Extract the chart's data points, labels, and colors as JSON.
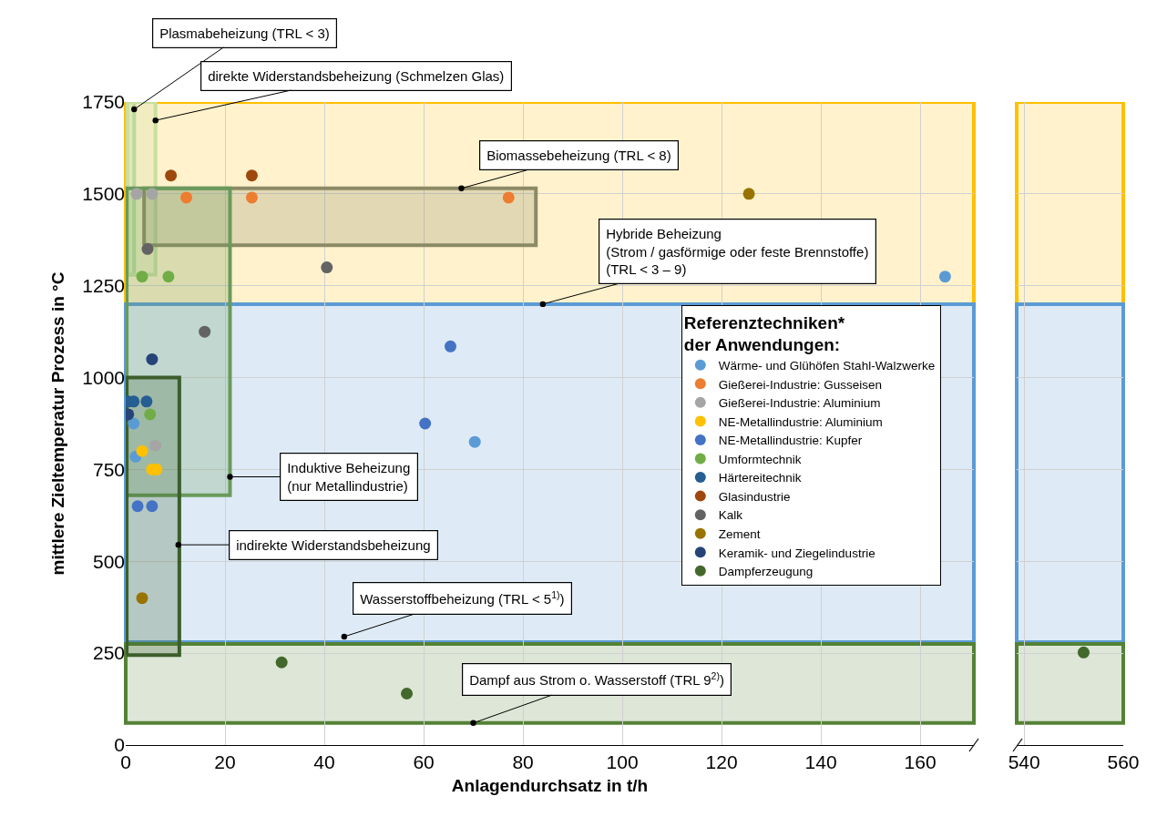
{
  "chart_data": [
    {
      "type": "scatter",
      "xlabel": "Anlagendurchsatz in t/h",
      "ylabel": "mittlere Zieltemperatur Prozess in °C",
      "legend_title": "Referenztechniken*\nder Anwendungen:",
      "xlim": [
        0,
        170.8
      ],
      "xticks": [
        0,
        20,
        40,
        60,
        80,
        100,
        120,
        140,
        160
      ],
      "ylim": [
        0,
        1750
      ],
      "yticks": [
        0,
        250,
        500,
        750,
        1000,
        1250,
        1500,
        1750
      ],
      "grid": true,
      "legend": "right",
      "bands": [
        {
          "axis": "y",
          "from": 1200,
          "to": 1750,
          "color": "#ffc000"
        },
        {
          "axis": "y",
          "from": 280,
          "to": 1200,
          "color": "#5b9bd5"
        },
        {
          "axis": "y",
          "from": 60,
          "to": 275,
          "color": "#548235"
        }
      ],
      "annotations": [
        {
          "text": "Plasmabeheizung (TRL < 3)",
          "x": 1.7,
          "y": 1730
        },
        {
          "text": "direkte Widerstandsbeheizung (Schmelzen Glas)",
          "x": 6,
          "y": 1700
        },
        {
          "text": "Biomassebeheizung (TRL < 8)",
          "x": 67.6,
          "y": 1515
        },
        {
          "text": "Hybride Beheizung\n(Strom / gasförmige oder feste Brennstoffe)\n(TRL < 3 – 9)",
          "x": 84,
          "y": 1200
        },
        {
          "text": "Induktive Beheizung\n(nur Metallindustrie)",
          "x": 21,
          "y": 730
        },
        {
          "text": "indirekte Widerstandsbeheizung",
          "x": 10.6,
          "y": 545
        },
        {
          "text": "Wasserstoffbeheizung (TRL < 5$^{1)}$)",
          "x": 44,
          "y": 295
        },
        {
          "text": "Dampf aus Strom o. Wasserstoff (TRL 9$^{2)}$)",
          "x": 70,
          "y": 60
        }
      ],
      "series": [
        {
          "type": "area",
          "color": "#b4d89c",
          "x": [
            0.3,
            1.7,
            1.7,
            0.3,
            0.3
          ],
          "values": [
            1280,
            1280,
            1750,
            1750,
            1280
          ]
        },
        {
          "type": "area",
          "color": "#c9dfa0",
          "x": [
            0.3,
            6,
            6,
            0.3,
            0.3
          ],
          "values": [
            1280,
            1280,
            1750,
            1750,
            1280
          ]
        },
        {
          "type": "area",
          "color": "#8c8a66",
          "x": [
            3.7,
            82.6,
            82.6,
            3.7,
            3.7
          ],
          "values": [
            1360,
            1360,
            1515,
            1515,
            1360
          ]
        },
        {
          "type": "area",
          "color": "#6a9a5b",
          "x": [
            0.2,
            21,
            21,
            0.2,
            0.2
          ],
          "values": [
            680,
            680,
            1515,
            1515,
            680
          ]
        },
        {
          "type": "area",
          "color": "#3b5e2b",
          "x": [
            0.2,
            10.8,
            10.8,
            0.2,
            0.2
          ],
          "values": [
            245,
            245,
            1000,
            1000,
            245
          ]
        },
        {
          "name": "Wärme- und Glühöfen Stahl-Walzwerke",
          "marker": "circle",
          "color": "#5b9bd5",
          "x": [
            2,
            1.6,
            70.3,
            165
          ],
          "values": [
            785,
            875,
            825,
            1275
          ]
        },
        {
          "name": "Gießerei-Industrie: Gusseisen",
          "marker": "circle",
          "color": "#ed7d31",
          "x": [
            12.2,
            25.4,
            77.1
          ],
          "values": [
            1490,
            1490,
            1490
          ]
        },
        {
          "name": "Gießerei-Industrie: Aluminium",
          "marker": "circle",
          "color": "#a5a5a5",
          "x": [
            2.2,
            5.3,
            6
          ],
          "values": [
            1500,
            1500,
            815
          ]
        },
        {
          "name": "NE-Metallindustrie: Aluminium",
          "marker": "circle",
          "color": "#ffc000",
          "x": [
            3.3,
            5.3,
            6.2
          ],
          "values": [
            800,
            750,
            750
          ]
        },
        {
          "name": "NE-Metallindustrie: Kupfer",
          "marker": "circle",
          "color": "#4472c4",
          "x": [
            2.4,
            5.3,
            60.3,
            65.4
          ],
          "values": [
            650,
            650,
            875,
            1085
          ]
        },
        {
          "name": "Umformtechnik",
          "marker": "circle",
          "color": "#70ad47",
          "x": [
            3.3,
            8.6,
            4.9
          ],
          "values": [
            1275,
            1275,
            900
          ]
        },
        {
          "name": "Härtereitechnik",
          "marker": "circle",
          "color": "#255e91",
          "x": [
            0.5,
            1.6,
            4.2
          ],
          "values": [
            935,
            935,
            935
          ]
        },
        {
          "name": "Glasindustrie",
          "marker": "circle",
          "color": "#9e480e",
          "x": [
            9.1,
            25.4
          ],
          "values": [
            1550,
            1550
          ]
        },
        {
          "name": "Kalk",
          "marker": "circle",
          "color": "#636363",
          "x": [
            4.4,
            40.5,
            15.9
          ],
          "values": [
            1350,
            1300,
            1125
          ]
        },
        {
          "name": "Zement",
          "marker": "circle",
          "color": "#997300",
          "x": [
            125.5,
            3.3
          ],
          "values": [
            1500,
            400
          ]
        },
        {
          "name": "Keramik- und Ziegelindustrie",
          "marker": "circle",
          "color": "#264478",
          "x": [
            5.3,
            0.5
          ],
          "values": [
            1050,
            900
          ]
        },
        {
          "name": "Dampferzeugung",
          "marker": "circle",
          "color": "#43682b",
          "x": [
            31.4,
            56.6
          ],
          "values": [
            225,
            140
          ]
        }
      ]
    },
    {
      "type": "scatter",
      "xlim": [
        538.5,
        560
      ],
      "xticks": [
        540,
        560
      ],
      "ylim": [
        0,
        1750
      ],
      "yticks": [
        0,
        250,
        500,
        750,
        1000,
        1250,
        1500,
        1750
      ],
      "grid": true,
      "tick_labels": "x",
      "bands": [
        {
          "axis": "y",
          "from": 1200,
          "to": 1750,
          "color": "#ffc000"
        },
        {
          "axis": "y",
          "from": 280,
          "to": 1200,
          "color": "#5b9bd5"
        },
        {
          "axis": "y",
          "from": 60,
          "to": 275,
          "color": "#548235"
        }
      ],
      "series": [
        {
          "marker": "circle",
          "color": "#43682b",
          "x": [
            552
          ],
          "values": [
            252
          ]
        }
      ]
    }
  ]
}
